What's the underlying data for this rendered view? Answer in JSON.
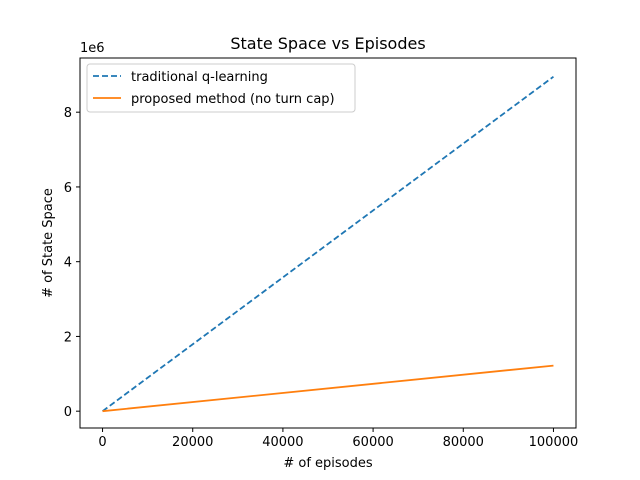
{
  "chart_data": {
    "type": "line",
    "title": "State Space vs Episodes",
    "xlabel": "# of episodes",
    "ylabel": "# of State Space",
    "y_offset_label": "1e6",
    "xlim": [
      -5000,
      105000
    ],
    "ylim": [
      -450000,
      9450000
    ],
    "x_ticks": [
      0,
      20000,
      40000,
      60000,
      80000,
      100000
    ],
    "x_tick_labels": [
      "0",
      "20000",
      "40000",
      "60000",
      "80000",
      "100000"
    ],
    "y_ticks": [
      0,
      2000000,
      4000000,
      6000000,
      8000000
    ],
    "y_tick_labels": [
      "0",
      "2",
      "4",
      "6",
      "8"
    ],
    "grid": false,
    "legend_position": "upper-left",
    "series": [
      {
        "name": "traditional q-learning",
        "color": "#1f77b4",
        "style": "dashed",
        "x": [
          0,
          100000
        ],
        "y": [
          0,
          8950000
        ]
      },
      {
        "name": "proposed method (no turn cap)",
        "color": "#ff7f0e",
        "style": "solid",
        "x": [
          0,
          100000
        ],
        "y": [
          0,
          1220000
        ]
      }
    ]
  }
}
